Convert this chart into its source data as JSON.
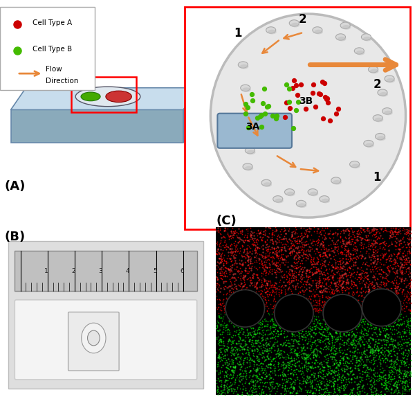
{
  "title": "",
  "panel_A_label": "(A)",
  "panel_B_label": "(B)",
  "panel_C_label": "(C)",
  "legend_items": [
    {
      "label": "Cell Type A",
      "color": "#cc0000",
      "marker": "o"
    },
    {
      "label": "Cell Type B",
      "color": "#44aa00",
      "marker": "o"
    },
    {
      "label": "Flow Direction",
      "color": "#e8883a",
      "marker": "arrow"
    }
  ],
  "chip_color": "#7aa8cc",
  "chip_body_color": "#b0c8e0",
  "inset_bg": "#f0f0f0",
  "inset_border": "#cc0000",
  "zone_labels": [
    "1",
    "2",
    "3A",
    "3B"
  ],
  "bg_color": "#ffffff"
}
